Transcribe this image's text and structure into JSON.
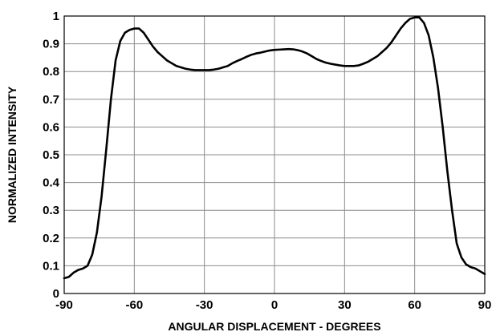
{
  "chart_data": {
    "type": "line",
    "xlabel": "ANGULAR DISPLACEMENT - DEGREES",
    "ylabel": "NORMALIZED INTENSITY",
    "xlim": [
      -90,
      90
    ],
    "ylim": [
      0,
      1
    ],
    "x_ticks": [
      "-90",
      "-60",
      "-30",
      "0",
      "30",
      "60",
      "90"
    ],
    "y_ticks": [
      "0",
      "0.1",
      "0.2",
      "0.3",
      "0.4",
      "0.5",
      "0.6",
      "0.7",
      "0.8",
      "0.9",
      "1"
    ],
    "grid": true,
    "legend": "none",
    "series": [
      {
        "color": "#000000",
        "points": [
          [
            -90,
            0.055
          ],
          [
            -88,
            0.06
          ],
          [
            -86,
            0.075
          ],
          [
            -84,
            0.085
          ],
          [
            -82,
            0.09
          ],
          [
            -80,
            0.1
          ],
          [
            -78,
            0.14
          ],
          [
            -76,
            0.22
          ],
          [
            -74,
            0.35
          ],
          [
            -72,
            0.52
          ],
          [
            -70,
            0.7
          ],
          [
            -68,
            0.84
          ],
          [
            -66,
            0.91
          ],
          [
            -64,
            0.94
          ],
          [
            -62,
            0.95
          ],
          [
            -60,
            0.955
          ],
          [
            -58,
            0.955
          ],
          [
            -56,
            0.94
          ],
          [
            -54,
            0.915
          ],
          [
            -52,
            0.89
          ],
          [
            -50,
            0.87
          ],
          [
            -48,
            0.855
          ],
          [
            -46,
            0.84
          ],
          [
            -44,
            0.83
          ],
          [
            -42,
            0.82
          ],
          [
            -40,
            0.815
          ],
          [
            -38,
            0.81
          ],
          [
            -36,
            0.807
          ],
          [
            -34,
            0.805
          ],
          [
            -32,
            0.805
          ],
          [
            -30,
            0.805
          ],
          [
            -28,
            0.805
          ],
          [
            -26,
            0.807
          ],
          [
            -24,
            0.81
          ],
          [
            -22,
            0.815
          ],
          [
            -20,
            0.82
          ],
          [
            -18,
            0.83
          ],
          [
            -16,
            0.838
          ],
          [
            -14,
            0.845
          ],
          [
            -12,
            0.853
          ],
          [
            -10,
            0.86
          ],
          [
            -8,
            0.865
          ],
          [
            -6,
            0.868
          ],
          [
            -4,
            0.872
          ],
          [
            -2,
            0.876
          ],
          [
            0,
            0.878
          ],
          [
            2,
            0.879
          ],
          [
            4,
            0.88
          ],
          [
            6,
            0.881
          ],
          [
            8,
            0.88
          ],
          [
            10,
            0.877
          ],
          [
            12,
            0.872
          ],
          [
            14,
            0.865
          ],
          [
            16,
            0.855
          ],
          [
            18,
            0.845
          ],
          [
            20,
            0.838
          ],
          [
            22,
            0.832
          ],
          [
            24,
            0.828
          ],
          [
            26,
            0.825
          ],
          [
            28,
            0.822
          ],
          [
            30,
            0.82
          ],
          [
            32,
            0.82
          ],
          [
            34,
            0.82
          ],
          [
            36,
            0.822
          ],
          [
            38,
            0.828
          ],
          [
            40,
            0.835
          ],
          [
            42,
            0.845
          ],
          [
            44,
            0.855
          ],
          [
            46,
            0.87
          ],
          [
            48,
            0.885
          ],
          [
            50,
            0.905
          ],
          [
            52,
            0.93
          ],
          [
            54,
            0.955
          ],
          [
            56,
            0.975
          ],
          [
            58,
            0.99
          ],
          [
            60,
            0.995
          ],
          [
            62,
            0.995
          ],
          [
            64,
            0.975
          ],
          [
            66,
            0.93
          ],
          [
            68,
            0.85
          ],
          [
            70,
            0.74
          ],
          [
            72,
            0.6
          ],
          [
            74,
            0.44
          ],
          [
            76,
            0.3
          ],
          [
            78,
            0.18
          ],
          [
            80,
            0.13
          ],
          [
            82,
            0.105
          ],
          [
            84,
            0.095
          ],
          [
            86,
            0.09
          ],
          [
            88,
            0.08
          ],
          [
            90,
            0.07
          ]
        ]
      }
    ]
  }
}
